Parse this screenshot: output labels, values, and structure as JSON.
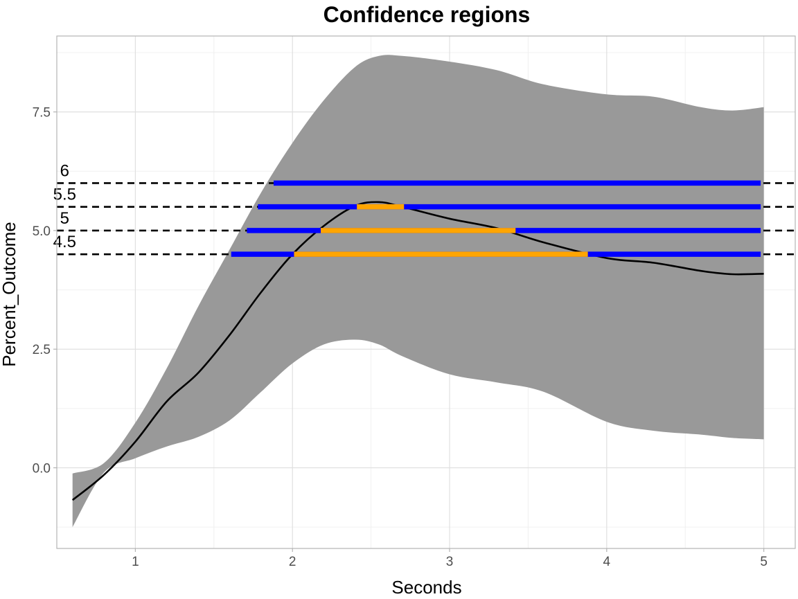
{
  "chart_data": {
    "type": "line",
    "title": "Confidence regions",
    "xlabel": "Seconds",
    "ylabel": "Percent_Outcome",
    "xlim": [
      0.5,
      5.2
    ],
    "ylim": [
      -1.7,
      9.1
    ],
    "x_ticks": [
      1,
      2,
      3,
      4,
      5
    ],
    "x_tick_labels": [
      "1",
      "2",
      "3",
      "4",
      "5"
    ],
    "y_ticks": [
      0,
      2.5,
      5,
      7.5
    ],
    "y_tick_labels": [
      "0.0",
      "2.5",
      "5.0",
      "7.5"
    ],
    "grid": true,
    "legend": "none",
    "colors": {
      "band": "#999999",
      "curve": "#000000",
      "segment": "#0000ff",
      "region": "#ffa500",
      "reference": "#000000"
    },
    "series": [
      {
        "type": "line",
        "x": [
          0.6,
          0.8,
          1.0,
          1.2,
          1.4,
          1.6,
          1.8,
          2.0,
          2.2,
          2.4,
          2.55,
          2.7,
          3.0,
          3.3,
          3.6,
          4.0,
          4.3,
          4.6,
          4.8,
          5.0
        ],
        "y": [
          -0.68,
          -0.15,
          0.55,
          1.4,
          2.0,
          2.8,
          3.7,
          4.5,
          5.1,
          5.52,
          5.6,
          5.5,
          5.25,
          5.05,
          4.75,
          4.42,
          4.32,
          4.15,
          4.08,
          4.09
        ]
      },
      {
        "type": "area",
        "x": [
          0.6,
          0.8,
          1.0,
          1.2,
          1.4,
          1.6,
          1.8,
          2.0,
          2.2,
          2.4,
          2.55,
          2.7,
          3.0,
          3.3,
          3.6,
          4.0,
          4.3,
          4.6,
          4.8,
          5.0
        ],
        "upper": [
          -0.12,
          0.1,
          0.95,
          2.1,
          3.4,
          4.6,
          5.8,
          6.85,
          7.75,
          8.45,
          8.68,
          8.68,
          8.56,
          8.38,
          8.08,
          7.87,
          7.82,
          7.6,
          7.53,
          7.6
        ],
        "lower": [
          -1.25,
          -0.1,
          0.2,
          0.45,
          0.65,
          1.0,
          1.6,
          2.2,
          2.6,
          2.7,
          2.6,
          2.35,
          1.97,
          1.8,
          1.6,
          0.97,
          0.78,
          0.7,
          0.63,
          0.6
        ]
      }
    ],
    "reference_lines": [
      {
        "y": 6,
        "label": "6",
        "segment": [
          1.88,
          4.98
        ],
        "regions": []
      },
      {
        "y": 5.5,
        "label": "5.5",
        "segment": [
          1.78,
          4.98
        ],
        "regions": [
          [
            2.41,
            2.71
          ]
        ]
      },
      {
        "y": 5,
        "label": "5",
        "segment": [
          1.71,
          4.98
        ],
        "regions": [
          [
            2.18,
            3.42
          ]
        ]
      },
      {
        "y": 4.5,
        "label": "4.5",
        "segment": [
          1.61,
          4.98
        ],
        "regions": [
          [
            2.01,
            3.88
          ]
        ]
      }
    ]
  }
}
